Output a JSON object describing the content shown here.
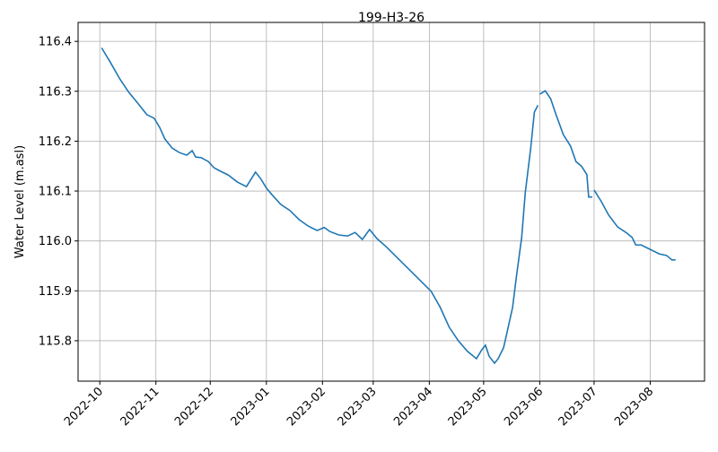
{
  "chart_data": {
    "type": "line",
    "title": "199-H3-26",
    "y_label": "Water Level (m.asl)",
    "x": [
      "2022-10-02",
      "2022-10-07",
      "2022-10-12",
      "2022-10-17",
      "2022-10-22",
      "2022-10-27",
      "2022-10-31",
      "2022-11-03",
      "2022-11-06",
      "2022-11-10",
      "2022-11-14",
      "2022-11-18",
      "2022-11-21",
      "2022-11-23",
      "2022-11-26",
      "2022-11-30",
      "2022-12-03",
      "2022-12-06",
      "2022-12-11",
      "2022-12-16",
      "2022-12-21",
      "2022-12-26",
      "2022-12-29",
      "2023-01-01",
      "2023-01-04",
      "2023-01-09",
      "2023-01-14",
      "2023-01-19",
      "2023-01-24",
      "2023-01-29",
      "2023-02-02",
      "2023-02-05",
      "2023-02-10",
      "2023-02-15",
      "2023-02-19",
      "2023-02-23",
      "2023-02-27",
      "2023-03-03",
      "2023-03-08",
      "2023-03-13",
      "2023-03-18",
      "2023-03-23",
      "2023-03-28",
      "2023-04-02",
      "2023-04-07",
      "2023-04-12",
      "2023-04-17",
      "2023-04-22",
      "2023-04-27",
      "2023-04-30",
      "2023-05-02",
      "2023-05-04",
      "2023-05-07",
      "2023-05-09",
      "2023-05-12",
      "2023-05-14",
      "2023-05-17",
      "2023-05-19",
      "2023-05-22",
      "2023-05-24",
      "2023-05-27",
      "2023-05-29",
      "2023-05-31",
      "2023-05-31",
      "2023-06-01",
      "2023-06-04",
      "2023-06-07",
      "2023-06-10",
      "2023-06-14",
      "2023-06-18",
      "2023-06-21",
      "2023-06-24",
      "2023-06-27",
      "2023-06-28",
      "2023-06-30",
      "2023-06-30",
      "2023-07-01",
      "2023-07-05",
      "2023-07-09",
      "2023-07-14",
      "2023-07-19",
      "2023-07-22",
      "2023-07-24",
      "2023-07-27",
      "2023-08-01",
      "2023-08-06",
      "2023-08-10",
      "2023-08-13",
      "2023-08-15"
    ],
    "values": [
      116.387,
      116.357,
      116.325,
      116.298,
      116.276,
      116.253,
      116.246,
      116.228,
      116.204,
      116.186,
      116.177,
      116.172,
      116.181,
      116.168,
      116.167,
      116.159,
      116.147,
      116.141,
      116.132,
      116.118,
      116.109,
      116.138,
      116.124,
      116.106,
      116.093,
      116.073,
      116.061,
      116.043,
      116.03,
      116.021,
      116.027,
      116.019,
      116.012,
      116.01,
      116.017,
      116.003,
      116.023,
      116.005,
      115.989,
      115.971,
      115.953,
      115.935,
      115.917,
      115.899,
      115.867,
      115.827,
      115.8,
      115.779,
      115.764,
      115.782,
      115.791,
      115.769,
      115.755,
      115.764,
      115.786,
      115.818,
      115.867,
      115.926,
      116.007,
      116.097,
      116.186,
      116.258,
      116.272,
      null,
      116.294,
      116.301,
      116.285,
      116.253,
      116.213,
      116.19,
      116.159,
      116.15,
      116.133,
      116.088,
      116.088,
      null,
      116.102,
      116.079,
      116.052,
      116.028,
      116.016,
      116.007,
      115.992,
      115.992,
      115.983,
      115.974,
      115.971,
      115.962,
      115.962
    ],
    "color": "#1f77b4",
    "xlim": [
      "2022-09-19",
      "2023-08-31"
    ],
    "xticks": [
      "2022-10",
      "2022-11",
      "2022-12",
      "2023-01",
      "2023-02",
      "2023-03",
      "2023-04",
      "2023-05",
      "2023-06",
      "2023-07",
      "2023-08"
    ],
    "ylim": [
      115.719,
      116.438
    ],
    "yticks": [
      115.8,
      115.9,
      {
        "value": 116,
        "label": "116.0"
      },
      116.1,
      116.2,
      116.3,
      116.4
    ],
    "grid": true
  }
}
